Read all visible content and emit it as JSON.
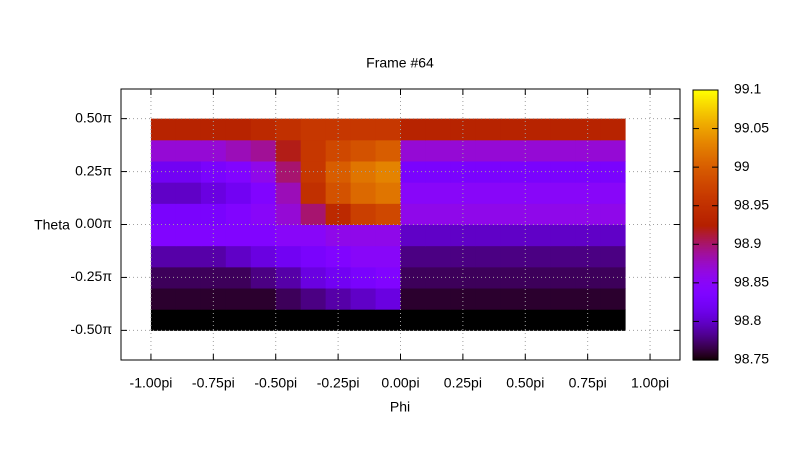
{
  "chart_data": {
    "type": "heatmap",
    "title": "Frame #64",
    "xlabel": "Phi",
    "ylabel": "Theta",
    "x": [
      -0.95,
      -0.85,
      -0.75,
      -0.65,
      -0.55,
      -0.45,
      -0.35,
      -0.25,
      -0.15,
      -0.05,
      0.05,
      0.15,
      0.25,
      0.35,
      0.45,
      0.55,
      0.65,
      0.75,
      0.85
    ],
    "y": [
      -0.45,
      -0.35,
      -0.25,
      -0.15,
      -0.05,
      0.05,
      0.15,
      0.25,
      0.35,
      0.45
    ],
    "z": [
      [
        98.75,
        98.75,
        98.75,
        98.75,
        98.75,
        98.75,
        98.75,
        98.75,
        98.75,
        98.75,
        98.75,
        98.75,
        98.75,
        98.75,
        98.75,
        98.75,
        98.75,
        98.75,
        98.75
      ],
      [
        98.76,
        98.76,
        98.76,
        98.76,
        98.76,
        98.77,
        98.78,
        98.79,
        98.8,
        98.81,
        98.76,
        98.76,
        98.76,
        98.76,
        98.76,
        98.76,
        98.76,
        98.76,
        98.76
      ],
      [
        98.77,
        98.77,
        98.77,
        98.77,
        98.78,
        98.79,
        98.81,
        98.82,
        98.83,
        98.84,
        98.77,
        98.77,
        98.77,
        98.77,
        98.77,
        98.77,
        98.77,
        98.77,
        98.77
      ],
      [
        98.79,
        98.79,
        98.79,
        98.8,
        98.81,
        98.82,
        98.83,
        98.84,
        98.85,
        98.85,
        98.78,
        98.78,
        98.78,
        98.78,
        98.78,
        98.78,
        98.78,
        98.78,
        98.78
      ],
      [
        98.84,
        98.84,
        98.84,
        98.84,
        98.84,
        98.85,
        98.85,
        98.86,
        98.86,
        98.86,
        98.8,
        98.8,
        98.8,
        98.8,
        98.8,
        98.8,
        98.8,
        98.8,
        98.8
      ],
      [
        98.83,
        98.83,
        98.83,
        98.84,
        98.85,
        98.87,
        98.9,
        98.94,
        98.97,
        98.98,
        98.86,
        98.86,
        98.86,
        98.86,
        98.86,
        98.86,
        98.86,
        98.86,
        98.86
      ],
      [
        98.8,
        98.8,
        98.81,
        98.82,
        98.84,
        98.88,
        98.95,
        98.99,
        99.01,
        99.02,
        98.85,
        98.85,
        98.85,
        98.85,
        98.85,
        98.85,
        98.85,
        98.85,
        98.85
      ],
      [
        98.82,
        98.82,
        98.83,
        98.84,
        98.86,
        98.9,
        98.96,
        99.0,
        99.02,
        99.03,
        98.83,
        98.83,
        98.83,
        98.83,
        98.83,
        98.83,
        98.83,
        98.83,
        98.83
      ],
      [
        98.87,
        98.87,
        98.87,
        98.88,
        98.89,
        98.92,
        98.96,
        98.98,
        98.99,
        99.0,
        98.87,
        98.87,
        98.87,
        98.87,
        98.87,
        98.87,
        98.87,
        98.87,
        98.87
      ],
      [
        98.93,
        98.93,
        98.93,
        98.93,
        98.94,
        98.95,
        98.96,
        98.96,
        98.96,
        98.96,
        98.93,
        98.93,
        98.93,
        98.93,
        98.93,
        98.93,
        98.93,
        98.93,
        98.93
      ]
    ],
    "xlim": [
      -1.12,
      1.12
    ],
    "xticks": [
      {
        "value": -1,
        "label": "-1.00pi"
      },
      {
        "value": -0.75,
        "label": "-0.75pi"
      },
      {
        "value": -0.5,
        "label": "-0.50pi"
      },
      {
        "value": -0.25,
        "label": "-0.25pi"
      },
      {
        "value": 0,
        "label": "0.00pi"
      },
      {
        "value": 0.25,
        "label": "0.25pi"
      },
      {
        "value": 0.5,
        "label": "0.50pi"
      },
      {
        "value": 0.75,
        "label": "0.75pi"
      },
      {
        "value": 1,
        "label": "1.00pi"
      }
    ],
    "ylim": [
      -0.64,
      0.64
    ],
    "yticks": [
      {
        "value": 0.5,
        "label": "0.50π"
      },
      {
        "value": 0.25,
        "label": "0.25π"
      },
      {
        "value": 0,
        "label": "0.00π"
      },
      {
        "value": -0.25,
        "label": "-0.25π"
      },
      {
        "value": -0.5,
        "label": "-0.50π"
      }
    ],
    "zlim": [
      98.75,
      99.1
    ],
    "zticks": [
      98.75,
      98.8,
      98.85,
      98.9,
      98.95,
      99,
      99.05,
      99.1
    ],
    "grid": true
  }
}
